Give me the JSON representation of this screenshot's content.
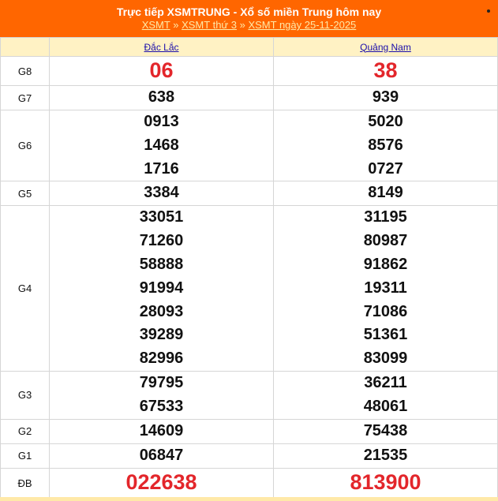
{
  "header": {
    "title": "Trực tiếp XSMTRUNG - Xổ số miền Trung hôm nay",
    "breadcrumb": [
      "XSMT",
      "XSMT thứ 3",
      "XSMT ngày 25-11-2025"
    ],
    "separator": "»"
  },
  "provinces": [
    "Đắc Lắc",
    "Quảng Nam"
  ],
  "prizes": [
    {
      "label": "G8",
      "highlight": true,
      "values": [
        [
          "06"
        ],
        [
          "38"
        ]
      ]
    },
    {
      "label": "G7",
      "values": [
        [
          "638"
        ],
        [
          "939"
        ]
      ]
    },
    {
      "label": "G6",
      "values": [
        [
          "0913",
          "1468",
          "1716"
        ],
        [
          "5020",
          "8576",
          "0727"
        ]
      ]
    },
    {
      "label": "G5",
      "values": [
        [
          "3384"
        ],
        [
          "8149"
        ]
      ]
    },
    {
      "label": "G4",
      "values": [
        [
          "33051",
          "71260",
          "58888",
          "91994",
          "28093",
          "39289",
          "82996"
        ],
        [
          "31195",
          "80987",
          "91862",
          "19311",
          "71086",
          "51361",
          "83099"
        ]
      ]
    },
    {
      "label": "G3",
      "values": [
        [
          "79795",
          "67533"
        ],
        [
          "36211",
          "48061"
        ]
      ]
    },
    {
      "label": "G2",
      "values": [
        [
          "14609"
        ],
        [
          "75438"
        ]
      ]
    },
    {
      "label": "G1",
      "values": [
        [
          "06847"
        ],
        [
          "21535"
        ]
      ]
    },
    {
      "label": "ĐB",
      "highlight": true,
      "values": [
        [
          "022638"
        ],
        [
          "813900"
        ]
      ]
    }
  ],
  "colors": {
    "header": "#ff6600",
    "prize_red": "#e3262b",
    "head_row": "#fff2c4"
  }
}
